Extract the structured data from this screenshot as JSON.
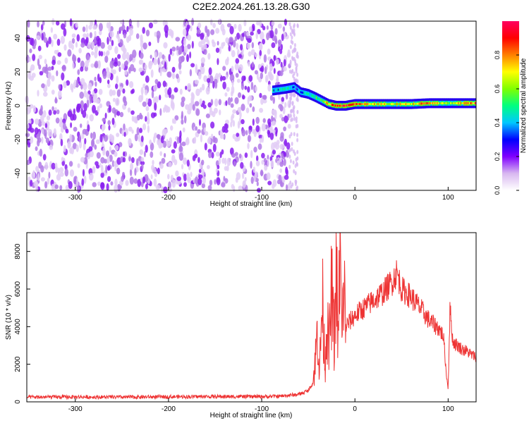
{
  "title": "C2E2.2024.261.13.28.G30",
  "chart_data": [
    {
      "type": "heatmap",
      "xlabel": "Height of straight line (km)",
      "ylabel": "Frequency (Hz)",
      "xlim": [
        -352,
        130
      ],
      "ylim": [
        -50,
        50
      ],
      "xticks": [
        -300,
        -200,
        -100,
        0,
        100
      ],
      "yticks": [
        -40,
        -20,
        0,
        20,
        40
      ],
      "colorbar": {
        "label": "Normalized spectral amplitude",
        "range": [
          0,
          1
        ],
        "ticks": [
          0.0,
          0.2,
          0.4,
          0.6,
          0.8
        ],
        "tick_labels": [
          "0.0",
          "0.2",
          "0.4",
          "0.6",
          "0.8"
        ],
        "colormap": [
          "#ffffff",
          "#d8b8f0",
          "#8000ff",
          "#0000ff",
          "#00c8ff",
          "#00ff80",
          "#80ff00",
          "#ffff00",
          "#ff8000",
          "#ff0000",
          "#ff0060"
        ]
      },
      "noise_region": {
        "x_range": [
          -352,
          -70
        ],
        "f_range": [
          -50,
          50
        ],
        "amplitude": 0.1
      },
      "signal_band": [
        {
          "x": -88,
          "f": 9,
          "amp": 0.4
        },
        {
          "x": -75,
          "f": 10,
          "amp": 0.45
        },
        {
          "x": -65,
          "f": 11,
          "amp": 0.35
        },
        {
          "x": -58,
          "f": 8,
          "amp": 0.4
        },
        {
          "x": -50,
          "f": 7,
          "amp": 0.4
        },
        {
          "x": -42,
          "f": 5,
          "amp": 0.5
        },
        {
          "x": -35,
          "f": 3,
          "amp": 0.6
        },
        {
          "x": -28,
          "f": 1,
          "amp": 0.75
        },
        {
          "x": -20,
          "f": 0,
          "amp": 0.85
        },
        {
          "x": -10,
          "f": 0,
          "amp": 0.9
        },
        {
          "x": 0,
          "f": 1,
          "amp": 0.85
        },
        {
          "x": 20,
          "f": 1,
          "amp": 0.7
        },
        {
          "x": 40,
          "f": 1,
          "amp": 0.65
        },
        {
          "x": 60,
          "f": 1,
          "amp": 0.7
        },
        {
          "x": 80,
          "f": 1.5,
          "amp": 0.8
        },
        {
          "x": 100,
          "f": 1.5,
          "amp": 0.6
        },
        {
          "x": 130,
          "f": 1.5,
          "amp": 0.85
        }
      ]
    },
    {
      "type": "line",
      "xlabel": "Height of straight line (km)",
      "ylabel": "SNR (10 * v/v)",
      "xlim": [
        -352,
        130
      ],
      "ylim": [
        0,
        9000
      ],
      "xticks": [
        -300,
        -200,
        -100,
        0,
        100
      ],
      "yticks": [
        0,
        2000,
        4000,
        6000,
        8000
      ],
      "color": "#ee3333",
      "series": [
        {
          "x": [
            -352,
            -300,
            -250,
            -200,
            -150,
            -100,
            -80,
            -60,
            -50,
            -45,
            -42,
            -40,
            -38,
            -35,
            -32,
            -30,
            -28,
            -25,
            -22,
            -20,
            -18,
            -16,
            -14,
            -12,
            -10,
            -5,
            0,
            10,
            20,
            30,
            40,
            45,
            50,
            60,
            70,
            80,
            90,
            95,
            98,
            100,
            102,
            105,
            110,
            115,
            120,
            125,
            130
          ],
          "y": [
            250,
            260,
            250,
            270,
            280,
            280,
            300,
            400,
            600,
            1000,
            2500,
            4000,
            1500,
            5500,
            2000,
            4500,
            2500,
            6000,
            3000,
            7800,
            2500,
            8900,
            3000,
            6500,
            4000,
            4300,
            4600,
            5000,
            5400,
            5800,
            6400,
            6900,
            6000,
            5600,
            5000,
            4300,
            3900,
            3500,
            1500,
            700,
            5000,
            3200,
            3000,
            2800,
            2700,
            2500,
            2400
          ]
        }
      ]
    }
  ]
}
